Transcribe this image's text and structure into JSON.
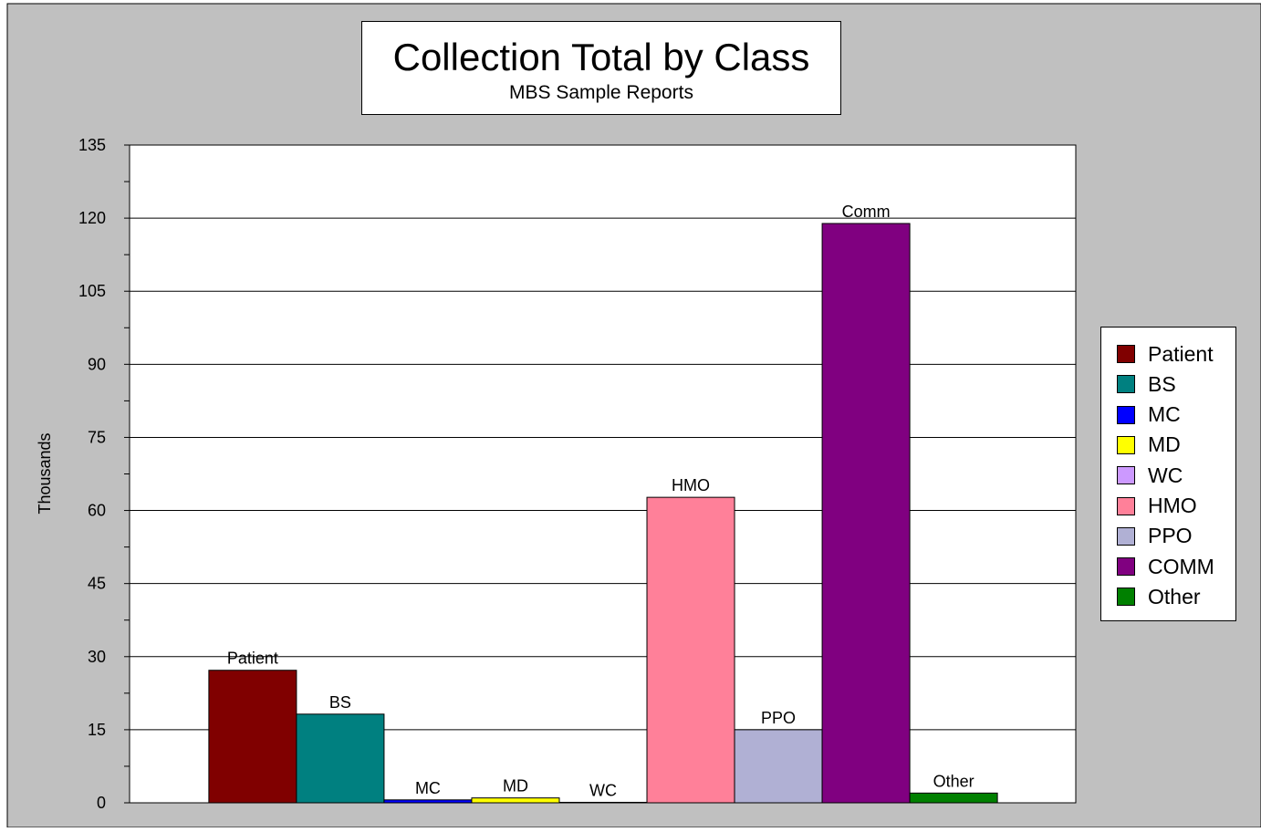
{
  "colors": {
    "page_background": "#c0c0c0",
    "plot_background": "#ffffff",
    "frame": "#000000"
  },
  "chart_data": {
    "type": "bar",
    "title": "Collection Total by Class",
    "subtitle": "MBS Sample Reports",
    "xlabel": "",
    "ylabel": "Thousands",
    "ylim": [
      0,
      135
    ],
    "yticks": [
      0,
      15,
      30,
      45,
      60,
      75,
      90,
      105,
      120,
      135
    ],
    "grid": true,
    "legend_position": "right",
    "categories": [
      "Patient",
      "BS",
      "MC",
      "MD",
      "WC",
      "HMO",
      "PPO",
      "COMM",
      "Other"
    ],
    "bar_labels": [
      "Patient",
      "BS",
      "MC",
      "MD",
      "WC",
      "HMO",
      "PPO",
      "Comm",
      "Other"
    ],
    "values": [
      27.2,
      18.2,
      0.6,
      1.0,
      0.1,
      62.7,
      15.0,
      118.9,
      2.0
    ],
    "series_colors": [
      "#800000",
      "#008080",
      "#0000ff",
      "#ffff00",
      "#cc99ff",
      "#ff8099",
      "#b0b0d4",
      "#800080",
      "#008000"
    ]
  }
}
